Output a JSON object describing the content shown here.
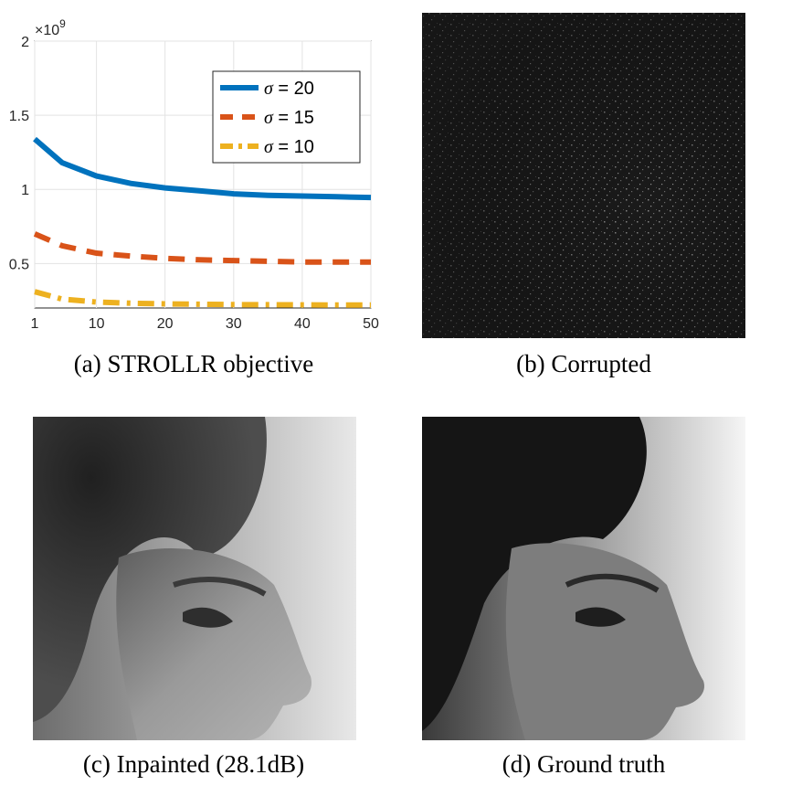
{
  "captions": {
    "a": "(a) STROLLR objective",
    "b": "(b) Corrupted",
    "c": "(c) Inpainted (28.1dB)",
    "d": "(d) Ground truth"
  },
  "chart_data": {
    "type": "line",
    "title": "",
    "xlabel": "",
    "ylabel": "",
    "y_exponent_label": "×10",
    "y_exponent_power": "9",
    "xlim": [
      1,
      50
    ],
    "ylim": [
      0.2,
      2
    ],
    "xticks": [
      1,
      10,
      20,
      30,
      40,
      50
    ],
    "xtick_labels": [
      "1",
      "10",
      "20",
      "30",
      "40",
      "50"
    ],
    "yticks": [
      0.5,
      1,
      1.5,
      2
    ],
    "ytick_labels": [
      "0.5",
      "1",
      "1.5",
      "2"
    ],
    "grid": true,
    "legend_position": "top-right",
    "x": [
      1,
      5,
      10,
      15,
      20,
      25,
      30,
      35,
      40,
      45,
      50
    ],
    "series": [
      {
        "name": "σ = 20",
        "greek": "σ",
        "suffix": " = 20",
        "color": "#0072BD",
        "style": "solid",
        "values": [
          1.34,
          1.18,
          1.09,
          1.04,
          1.01,
          0.99,
          0.97,
          0.96,
          0.955,
          0.95,
          0.945
        ]
      },
      {
        "name": "σ = 15",
        "greek": "σ",
        "suffix": " = 15",
        "color": "#D95319",
        "style": "dashed",
        "values": [
          0.7,
          0.62,
          0.57,
          0.55,
          0.535,
          0.525,
          0.52,
          0.515,
          0.51,
          0.51,
          0.51
        ]
      },
      {
        "name": "σ = 10",
        "greek": "σ",
        "suffix": " = 10",
        "color": "#EDB120",
        "style": "dashdot",
        "values": [
          0.31,
          0.26,
          0.24,
          0.232,
          0.228,
          0.225,
          0.223,
          0.222,
          0.221,
          0.22,
          0.22
        ]
      }
    ]
  }
}
